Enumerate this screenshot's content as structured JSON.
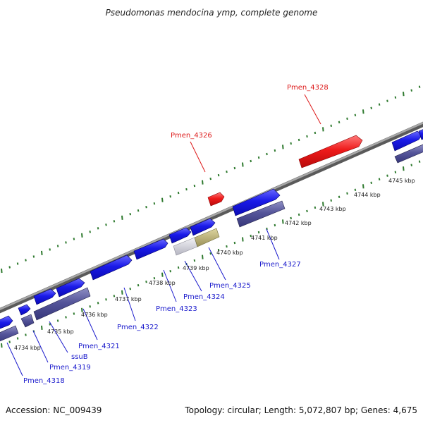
{
  "title": "Pseudomonas mendocina ymp, complete genome",
  "footer": {
    "accession": "Accession: NC_009439",
    "summary": "Topology: circular; Length: 5,072,807 bp; Genes: 4,675"
  },
  "colors": {
    "backbone": "#8a8a8a",
    "tick": "#2f7a2f",
    "gene_blue": "#1717e6",
    "gene_lavender": "#55559a",
    "gene_red": "#e61a1a",
    "gene_grey": "#c8c8d2",
    "gene_olive": "#b7ad6e",
    "label_blue": "#1a1acc",
    "label_red": "#dd1a1a"
  },
  "kbp_labels": [
    "4734 kbp",
    "4735 kbp",
    "4736 kbp",
    "4737 kbp",
    "4738 kbp",
    "4739 kbp",
    "4740 kbp",
    "4741 kbp",
    "4742 kbp",
    "4743 kbp",
    "4744 kbp",
    "4745 kbp"
  ],
  "gene_labels": [
    {
      "text": "Pmen_4328",
      "color": "red"
    },
    {
      "text": "Pmen_4326",
      "color": "red"
    },
    {
      "text": "Pmen_4327",
      "color": "blue"
    },
    {
      "text": "Pmen_4325",
      "color": "blue"
    },
    {
      "text": "Pmen_4324",
      "color": "blue"
    },
    {
      "text": "Pmen_4323",
      "color": "blue"
    },
    {
      "text": "Pmen_4322",
      "color": "blue"
    },
    {
      "text": "Pmen_4321",
      "color": "blue"
    },
    {
      "text": "ssuB",
      "color": "blue"
    },
    {
      "text": "Pmen_4319",
      "color": "blue"
    },
    {
      "text": "Pmen_4318",
      "color": "blue"
    }
  ]
}
